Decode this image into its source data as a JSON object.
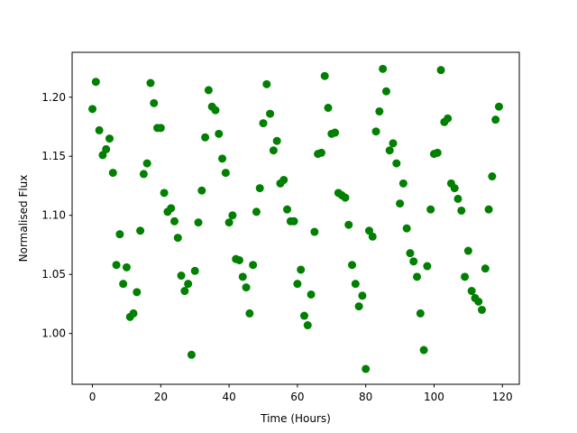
{
  "chart_data": {
    "type": "scatter",
    "xlabel": "Time (Hours)",
    "ylabel": "Normalised Flux",
    "color": "#008000",
    "x": [
      0,
      1,
      2,
      3,
      4,
      5,
      6,
      7,
      8,
      9,
      10,
      11,
      12,
      13,
      14,
      15,
      16,
      17,
      18,
      19,
      20,
      21,
      22,
      23,
      24,
      25,
      26,
      27,
      28,
      29,
      30,
      31,
      32,
      33,
      34,
      35,
      36,
      37,
      38,
      39,
      40,
      41,
      42,
      43,
      44,
      45,
      46,
      47,
      48,
      49,
      50,
      51,
      52,
      53,
      54,
      55,
      56,
      57,
      58,
      59,
      60,
      61,
      62,
      63,
      64,
      65,
      66,
      67,
      68,
      69,
      70,
      71,
      72,
      73,
      74,
      75,
      76,
      77,
      78,
      79,
      80,
      81,
      82,
      83,
      84,
      85,
      86,
      87,
      88,
      89,
      90,
      91,
      92,
      93,
      94,
      95,
      96,
      97,
      98,
      99,
      100,
      101,
      102,
      103,
      104,
      105,
      106,
      107,
      108,
      109,
      110,
      111,
      112,
      113,
      114,
      115,
      116,
      117,
      118,
      119
    ],
    "values": [
      1.19,
      1.213,
      1.172,
      1.151,
      1.156,
      1.165,
      1.136,
      1.058,
      1.084,
      1.042,
      1.056,
      1.014,
      1.017,
      1.035,
      1.087,
      1.135,
      1.144,
      1.212,
      1.195,
      1.174,
      1.174,
      1.119,
      1.103,
      1.106,
      1.095,
      1.081,
      1.049,
      1.036,
      1.042,
      0.982,
      1.053,
      1.094,
      1.121,
      1.166,
      1.206,
      1.192,
      1.189,
      1.169,
      1.148,
      1.136,
      1.094,
      1.1,
      1.063,
      1.062,
      1.048,
      1.039,
      1.017,
      1.058,
      1.103,
      1.123,
      1.178,
      1.211,
      1.186,
      1.155,
      1.163,
      1.127,
      1.13,
      1.105,
      1.095,
      1.095,
      1.042,
      1.054,
      1.015,
      1.007,
      1.033,
      1.086,
      1.152,
      1.153,
      1.218,
      1.191,
      1.169,
      1.17,
      1.119,
      1.117,
      1.115,
      1.092,
      1.058,
      1.042,
      1.023,
      1.032,
      0.97,
      1.087,
      1.082,
      1.171,
      1.188,
      1.224,
      1.205,
      1.155,
      1.161,
      1.144,
      1.11,
      1.127,
      1.089,
      1.068,
      1.061,
      1.048,
      1.017,
      0.986,
      1.057,
      1.105,
      1.152,
      1.153,
      1.223,
      1.179,
      1.182,
      1.127,
      1.123,
      1.114,
      1.104,
      1.048,
      1.07,
      1.036,
      1.03,
      1.027,
      1.02,
      1.055,
      1.105,
      1.133,
      1.181,
      1.192
    ],
    "xlim": [
      -5.95,
      124.95
    ],
    "ylim": [
      0.957,
      1.238
    ],
    "xticks": [
      0,
      20,
      40,
      60,
      80,
      100,
      120
    ],
    "yticks": [
      {
        "value": 1.0,
        "label": "1.00"
      },
      1.05,
      {
        "value": 1.1,
        "label": "1.10"
      },
      1.15,
      {
        "value": 1.2,
        "label": "1.20"
      }
    ]
  }
}
